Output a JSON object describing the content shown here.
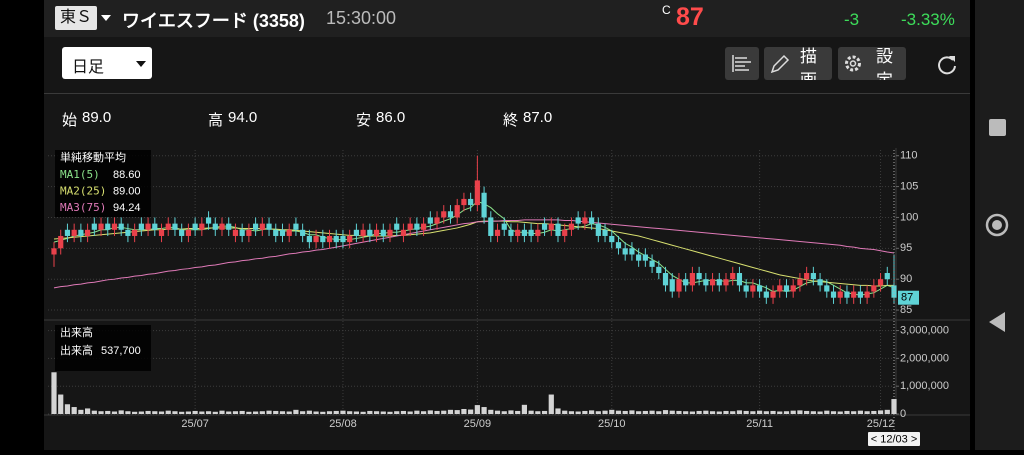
{
  "header": {
    "market": "東Ｓ",
    "name": "ワイエスフード (3358)",
    "time": "15:30:00",
    "price_flag": "C",
    "price": 87,
    "change": -3,
    "change_pct": "-3.33%"
  },
  "toolbar": {
    "period": "日足",
    "draw": "描画",
    "settings": "設定"
  },
  "ohlc_summary": [
    {
      "name": "始",
      "label": "89.0"
    },
    {
      "name": "高",
      "label": "94.0"
    },
    {
      "name": "安",
      "label": "86.0"
    },
    {
      "name": "終",
      "label": "87.0"
    }
  ],
  "chart_data": [
    {
      "type": "candlestick",
      "title": "単純移動平均",
      "cursor_label": "< 12/03 >",
      "categories": [
        null,
        null,
        null,
        null,
        null,
        null,
        null,
        null,
        null,
        null,
        null,
        null,
        null,
        null,
        null,
        null,
        null,
        null,
        null,
        null,
        null,
        "25/07",
        null,
        null,
        null,
        null,
        null,
        null,
        null,
        null,
        null,
        null,
        null,
        null,
        null,
        null,
        null,
        null,
        null,
        null,
        null,
        null,
        null,
        "25/08",
        null,
        null,
        null,
        null,
        null,
        null,
        null,
        null,
        null,
        null,
        null,
        null,
        null,
        null,
        null,
        null,
        null,
        null,
        null,
        "25/09",
        null,
        null,
        null,
        null,
        null,
        null,
        null,
        null,
        null,
        null,
        null,
        null,
        null,
        null,
        null,
        null,
        null,
        null,
        null,
        "25/10",
        null,
        null,
        null,
        null,
        null,
        null,
        null,
        null,
        null,
        null,
        null,
        null,
        null,
        null,
        null,
        null,
        null,
        null,
        null,
        null,
        null,
        "25/11",
        null,
        null,
        null,
        null,
        null,
        null,
        null,
        null,
        null,
        null,
        null,
        null,
        null,
        null,
        null,
        null,
        null,
        "25/12",
        null,
        null
      ],
      "open": [
        94,
        95,
        98,
        97,
        98,
        97,
        99,
        98,
        99,
        98,
        99,
        98,
        97,
        99,
        98,
        99,
        97,
        98,
        99,
        98,
        97,
        99,
        98,
        100,
        99,
        98,
        99,
        97,
        98,
        97,
        99,
        98,
        99,
        98,
        98,
        97,
        99,
        98,
        97,
        96,
        97,
        96,
        97,
        97,
        96,
        98,
        97,
        98,
        97,
        98,
        97,
        99,
        97,
        98,
        99,
        98,
        100,
        99,
        100,
        101,
        100,
        102,
        103,
        102,
        104,
        100,
        97,
        99,
        98,
        97,
        98,
        98,
        97,
        99,
        98,
        99,
        97,
        98,
        100,
        99,
        100,
        99,
        98,
        97,
        96,
        95,
        95,
        94,
        94,
        93,
        92,
        91,
        90,
        88,
        90,
        89,
        91,
        90,
        89,
        90,
        89,
        90,
        91,
        89,
        88,
        89,
        88,
        87,
        88,
        89,
        88,
        89,
        90,
        91,
        90,
        89,
        88,
        87,
        88,
        87,
        88,
        87,
        88,
        89,
        91,
        89
      ],
      "high": [
        96,
        98,
        99,
        99,
        99,
        99,
        100,
        100,
        100,
        100,
        100,
        99,
        99,
        100,
        100,
        100,
        99,
        100,
        100,
        99,
        99,
        100,
        100,
        101,
        100,
        100,
        100,
        99,
        99,
        99,
        100,
        100,
        100,
        99,
        99,
        99,
        100,
        99,
        98,
        98,
        98,
        98,
        98,
        98,
        98,
        99,
        99,
        99,
        99,
        99,
        99,
        100,
        99,
        100,
        100,
        100,
        101,
        101,
        102,
        102,
        103,
        104,
        104,
        110,
        105,
        101,
        99,
        100,
        99,
        99,
        99,
        99,
        99,
        100,
        100,
        100,
        99,
        100,
        101,
        101,
        101,
        100,
        99,
        98,
        97,
        96,
        96,
        95,
        95,
        94,
        93,
        92,
        91,
        91,
        91,
        92,
        92,
        91,
        91,
        91,
        91,
        92,
        92,
        90,
        90,
        90,
        89,
        89,
        90,
        90,
        90,
        91,
        92,
        92,
        91,
        90,
        89,
        89,
        89,
        89,
        89,
        89,
        90,
        91,
        92,
        94
      ],
      "low": [
        92,
        94,
        96,
        96,
        96,
        96,
        97,
        97,
        97,
        97,
        97,
        96,
        96,
        97,
        97,
        97,
        96,
        97,
        97,
        96,
        96,
        97,
        97,
        98,
        97,
        97,
        97,
        96,
        96,
        96,
        97,
        97,
        97,
        96,
        96,
        96,
        97,
        96,
        95,
        95,
        95,
        95,
        95,
        95,
        95,
        96,
        96,
        96,
        96,
        96,
        96,
        97,
        96,
        97,
        97,
        97,
        98,
        98,
        99,
        99,
        99,
        101,
        101,
        101,
        99,
        96,
        96,
        97,
        96,
        96,
        96,
        96,
        96,
        97,
        97,
        96,
        96,
        97,
        98,
        98,
        98,
        96,
        96,
        95,
        94,
        93,
        93,
        92,
        92,
        91,
        90,
        88,
        87,
        87,
        88,
        88,
        89,
        88,
        88,
        88,
        88,
        89,
        88,
        87,
        87,
        87,
        86,
        86,
        87,
        87,
        87,
        88,
        89,
        89,
        88,
        87,
        86,
        86,
        86,
        86,
        86,
        86,
        87,
        88,
        89,
        86
      ],
      "close": [
        95,
        97,
        97,
        98,
        97,
        98,
        98,
        99,
        98,
        99,
        98,
        97,
        98,
        98,
        99,
        98,
        98,
        99,
        98,
        97,
        98,
        98,
        99,
        99,
        98,
        99,
        98,
        98,
        97,
        98,
        98,
        99,
        98,
        97,
        97,
        98,
        98,
        97,
        96,
        97,
        96,
        97,
        96,
        96,
        97,
        97,
        98,
        97,
        98,
        97,
        98,
        98,
        98,
        99,
        98,
        99,
        99,
        100,
        101,
        100,
        102,
        103,
        102,
        106,
        100,
        97,
        98,
        98,
        97,
        98,
        97,
        97,
        98,
        98,
        99,
        97,
        98,
        99,
        99,
        100,
        99,
        97,
        97,
        96,
        95,
        94,
        94,
        93,
        93,
        92,
        91,
        89,
        88,
        90,
        89,
        91,
        90,
        89,
        90,
        89,
        90,
        91,
        89,
        88,
        89,
        88,
        87,
        88,
        89,
        88,
        89,
        90,
        91,
        90,
        89,
        88,
        87,
        88,
        87,
        88,
        87,
        88,
        89,
        90,
        90,
        87
      ],
      "up_color": "#e9414b",
      "down_color": "#5fd3d6",
      "series": [
        {
          "name": "MA1(5)",
          "color": "#8be38b",
          "legend_value": "88.60",
          "values": [
            96.0,
            96.3,
            96.6,
            97.0,
            97.2,
            97.4,
            97.6,
            98.0,
            98.0,
            98.4,
            98.4,
            98.2,
            98.0,
            98.0,
            98.0,
            98.2,
            98.2,
            98.4,
            98.4,
            98.0,
            98.0,
            98.0,
            98.0,
            98.2,
            98.4,
            98.6,
            98.6,
            98.4,
            98.0,
            98.0,
            97.8,
            98.0,
            98.2,
            98.0,
            97.8,
            97.8,
            97.8,
            97.6,
            97.2,
            97.2,
            96.8,
            96.6,
            96.4,
            96.4,
            96.4,
            96.6,
            96.8,
            97.0,
            97.4,
            97.4,
            97.6,
            97.6,
            97.8,
            98.0,
            98.2,
            98.4,
            98.6,
            99.0,
            99.4,
            99.8,
            100.4,
            101.2,
            101.6,
            102.6,
            102.2,
            101.6,
            100.6,
            99.8,
            98.0,
            97.6,
            97.6,
            97.4,
            97.4,
            97.6,
            98.0,
            97.8,
            98.0,
            98.2,
            98.4,
            98.6,
            99.0,
            98.8,
            98.4,
            97.8,
            96.8,
            95.8,
            95.2,
            94.4,
            93.8,
            93.2,
            92.6,
            91.6,
            90.6,
            90.0,
            89.4,
            89.4,
            89.6,
            89.8,
            89.8,
            89.8,
            89.6,
            89.8,
            89.8,
            89.4,
            89.4,
            89.0,
            88.6,
            88.0,
            88.2,
            88.0,
            88.2,
            88.8,
            89.4,
            89.6,
            89.8,
            89.6,
            89.0,
            88.4,
            87.8,
            87.6,
            87.4,
            87.6,
            87.8,
            88.4,
            89.0,
            88.6
          ]
        },
        {
          "name": "MA2(25)",
          "color": "#d8e070",
          "legend_value": "89.00",
          "values": [
            96.5,
            96.6,
            96.7,
            96.8,
            96.9,
            97.0,
            97.1,
            97.2,
            97.3,
            97.4,
            97.5,
            97.6,
            97.7,
            97.8,
            97.9,
            98.0,
            98.0,
            98.1,
            98.1,
            98.1,
            98.2,
            98.2,
            98.2,
            98.3,
            98.3,
            98.3,
            98.3,
            98.3,
            98.2,
            98.2,
            98.2,
            98.2,
            98.1,
            98.1,
            98.0,
            98.0,
            97.9,
            97.8,
            97.7,
            97.6,
            97.5,
            97.4,
            97.3,
            97.2,
            97.1,
            97.1,
            97.0,
            97.0,
            97.0,
            97.0,
            97.0,
            97.1,
            97.1,
            97.2,
            97.3,
            97.4,
            97.5,
            97.7,
            97.9,
            98.1,
            98.3,
            98.6,
            98.9,
            99.3,
            99.4,
            99.4,
            99.4,
            99.4,
            99.3,
            99.3,
            99.2,
            99.1,
            99.0,
            99.0,
            98.9,
            98.8,
            98.7,
            98.6,
            98.5,
            98.4,
            98.3,
            98.2,
            98.0,
            97.8,
            97.6,
            97.4,
            97.2,
            97.0,
            96.7,
            96.4,
            96.1,
            95.8,
            95.5,
            95.2,
            94.9,
            94.6,
            94.3,
            94.0,
            93.7,
            93.4,
            93.1,
            92.8,
            92.5,
            92.2,
            91.9,
            91.6,
            91.3,
            91.0,
            90.7,
            90.5,
            90.3,
            90.1,
            89.9,
            89.7,
            89.6,
            89.5,
            89.4,
            89.3,
            89.2,
            89.1,
            89.0,
            89.0,
            88.9,
            88.9,
            89.0,
            89
          ]
        },
        {
          "name": "MA3(75)",
          "color": "#e07ab8",
          "legend_value": "94.24",
          "values": [
            88.6,
            88.8,
            88.9,
            89.1,
            89.2,
            89.4,
            89.5,
            89.7,
            89.9,
            90.0,
            90.2,
            90.3,
            90.5,
            90.6,
            90.8,
            90.9,
            91.1,
            91.3,
            91.4,
            91.6,
            91.7,
            91.9,
            92.0,
            92.2,
            92.3,
            92.5,
            92.7,
            92.8,
            93.0,
            93.1,
            93.3,
            93.4,
            93.6,
            93.7,
            93.9,
            94.1,
            94.2,
            94.4,
            94.5,
            94.7,
            94.8,
            95.0,
            95.2,
            95.4,
            95.6,
            95.8,
            96.0,
            96.2,
            96.4,
            96.6,
            96.8,
            97.0,
            97.2,
            97.4,
            97.6,
            97.8,
            98.0,
            98.2,
            98.4,
            98.6,
            98.8,
            99.0,
            99.1,
            99.3,
            99.3,
            99.4,
            99.4,
            99.5,
            99.5,
            99.5,
            99.6,
            99.6,
            99.6,
            99.6,
            99.6,
            99.6,
            99.5,
            99.5,
            99.4,
            99.3,
            99.2,
            99.1,
            99.0,
            98.9,
            98.8,
            98.7,
            98.6,
            98.5,
            98.4,
            98.3,
            98.2,
            98.1,
            98.0,
            97.9,
            97.8,
            97.7,
            97.6,
            97.5,
            97.4,
            97.3,
            97.2,
            97.1,
            97.0,
            96.9,
            96.8,
            96.7,
            96.6,
            96.5,
            96.4,
            96.3,
            96.2,
            96.1,
            96.0,
            95.9,
            95.8,
            95.7,
            95.6,
            95.5,
            95.3,
            95.2,
            95.0,
            94.9,
            94.8,
            94.6,
            94.4,
            94.24
          ]
        }
      ],
      "ylim": [
        84.2,
        110.6
      ],
      "yticks": [
        85,
        90,
        95,
        100,
        105,
        110
      ],
      "grid": true
    },
    {
      "type": "bar",
      "title": "出来高",
      "series": [
        {
          "name": "出来高",
          "color": "#d4d4d4",
          "legend_value": "537,700",
          "values": [
            1500000,
            700000,
            350000,
            250000,
            150000,
            200000,
            120000,
            100000,
            110000,
            90000,
            130000,
            100000,
            80000,
            90000,
            110000,
            100000,
            90000,
            120000,
            100000,
            80000,
            90000,
            110000,
            90000,
            100000,
            80000,
            120000,
            90000,
            100000,
            110000,
            80000,
            90000,
            100000,
            120000,
            110000,
            100000,
            90000,
            150000,
            100000,
            120000,
            90000,
            80000,
            100000,
            110000,
            120000,
            100000,
            90000,
            80000,
            110000,
            100000,
            90000,
            80000,
            100000,
            110000,
            90000,
            120000,
            100000,
            130000,
            110000,
            120000,
            150000,
            140000,
            180000,
            160000,
            320000,
            250000,
            150000,
            120000,
            100000,
            130000,
            110000,
            330000,
            120000,
            100000,
            110000,
            700000,
            200000,
            120000,
            100000,
            90000,
            110000,
            130000,
            100000,
            120000,
            150000,
            120000,
            110000,
            130000,
            100000,
            110000,
            120000,
            100000,
            140000,
            120000,
            110000,
            100000,
            90000,
            110000,
            120000,
            100000,
            90000,
            110000,
            100000,
            130000,
            110000,
            100000,
            120000,
            100000,
            110000,
            90000,
            100000,
            120000,
            130000,
            110000,
            100000,
            90000,
            120000,
            100000,
            90000,
            110000,
            100000,
            120000,
            100000,
            110000,
            130000,
            150000,
            537700
          ]
        }
      ],
      "ylim": [
        0,
        3200000
      ],
      "yticks": [
        0,
        {
          "value": 1000000,
          "label": "1,000,000"
        },
        {
          "value": 2000000,
          "label": "2,000,000"
        },
        {
          "value": 3000000,
          "label": "3,000,000"
        }
      ],
      "grid": true
    }
  ]
}
